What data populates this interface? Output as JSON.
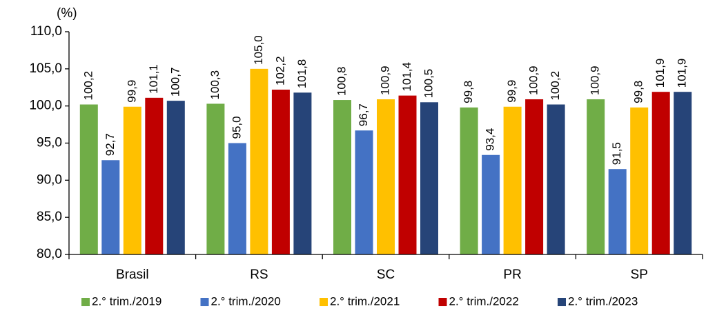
{
  "chart_data": {
    "type": "bar",
    "y_label": "(%)",
    "categories": [
      "Brasil",
      "RS",
      "SC",
      "PR",
      "SP"
    ],
    "series": [
      {
        "name": "2.° trim./2019",
        "color": "#70ad47",
        "values": [
          100.2,
          100.3,
          100.8,
          99.8,
          100.9
        ],
        "value_labels": [
          "100,2",
          "100,3",
          "100,8",
          "99,8",
          "100,9"
        ]
      },
      {
        "name": "2.° trim./2020",
        "color": "#4472c4",
        "values": [
          92.7,
          95.0,
          96.7,
          93.4,
          91.5
        ],
        "value_labels": [
          "92,7",
          "95,0",
          "96,7",
          "93,4",
          "91,5"
        ]
      },
      {
        "name": "2.° trim./2021",
        "color": "#ffc000",
        "values": [
          99.9,
          105.0,
          100.9,
          99.9,
          99.8
        ],
        "value_labels": [
          "99,9",
          "105,0",
          "100,9",
          "99,9",
          "99,8"
        ]
      },
      {
        "name": "2.° trim./2022",
        "color": "#c00000",
        "values": [
          101.1,
          102.2,
          101.4,
          100.9,
          101.9
        ],
        "value_labels": [
          "101,1",
          "102,2",
          "101,4",
          "100,9",
          "101,9"
        ]
      },
      {
        "name": "2.° trim./2023",
        "color": "#264478",
        "values": [
          100.7,
          101.8,
          100.5,
          100.2,
          101.9
        ],
        "value_labels": [
          "100,7",
          "101,8",
          "100,5",
          "100,2",
          "101,9"
        ]
      }
    ],
    "ylim": [
      80,
      110
    ],
    "yticks": [
      {
        "value": 80,
        "label": "80,0"
      },
      {
        "value": 85,
        "label": "85,0"
      },
      {
        "value": 90,
        "label": "90,0"
      },
      {
        "value": 95,
        "label": "95,0"
      },
      {
        "value": 100,
        "label": "100,0"
      },
      {
        "value": 105,
        "label": "105,0"
      },
      {
        "value": 110,
        "label": "110,0"
      }
    ],
    "grid": false,
    "legend": "bottom"
  }
}
